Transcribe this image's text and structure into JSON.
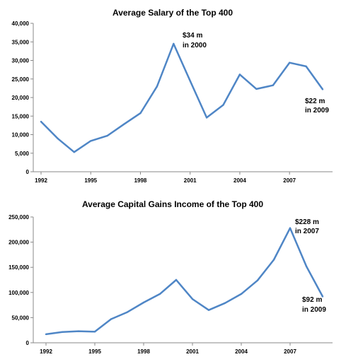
{
  "chart_data": [
    {
      "type": "line",
      "title": "Average Salary of the Top 400",
      "x": [
        1992,
        1993,
        1994,
        1995,
        1996,
        1997,
        1998,
        1999,
        2000,
        2001,
        2002,
        2003,
        2004,
        2005,
        2006,
        2007,
        2008,
        2009
      ],
      "series": [
        {
          "values": [
            13500,
            9000,
            5300,
            8300,
            9700,
            12800,
            15800,
            23000,
            34500,
            24500,
            14600,
            18000,
            26200,
            22300,
            23300,
            29400,
            28400,
            22200
          ]
        }
      ],
      "xticks": [
        "1992",
        "1995",
        "1998",
        "2001",
        "2004",
        "2007"
      ],
      "yticks": [
        "0",
        "5,000",
        "10,000",
        "15,000",
        "20,000",
        "25,000",
        "30,000",
        "35,000",
        "40,000"
      ],
      "ylim": [
        0,
        40000
      ],
      "grid": false,
      "color": "#4F86C6",
      "annotations": [
        {
          "line1": "$34 m",
          "line2": "in 2000"
        },
        {
          "line1": "$22 m",
          "line2": "in 2009"
        }
      ]
    },
    {
      "type": "line",
      "title": "Average Capital Gains Income of the Top 400",
      "x": [
        1992,
        1993,
        1994,
        1995,
        1996,
        1997,
        1998,
        1999,
        2000,
        2001,
        2002,
        2003,
        2004,
        2005,
        2006,
        2007,
        2008,
        2009
      ],
      "series": [
        {
          "values": [
            17000,
            21500,
            23000,
            22000,
            47000,
            61000,
            80000,
            97000,
            125000,
            87000,
            65000,
            79000,
            97000,
            124000,
            165000,
            228000,
            152000,
            92000
          ]
        }
      ],
      "xticks": [
        "1992",
        "1995",
        "1998",
        "2001",
        "2004",
        "2007"
      ],
      "yticks": [
        "0",
        "50,000",
        "100,000",
        "150,000",
        "200,000",
        "250,000"
      ],
      "ylim": [
        0,
        250000
      ],
      "grid": false,
      "color": "#4F86C6",
      "annotations": [
        {
          "line1": "$228 m",
          "line2": "in 2007"
        },
        {
          "line1": "$92 m",
          "line2": "in 2009"
        }
      ]
    }
  ]
}
